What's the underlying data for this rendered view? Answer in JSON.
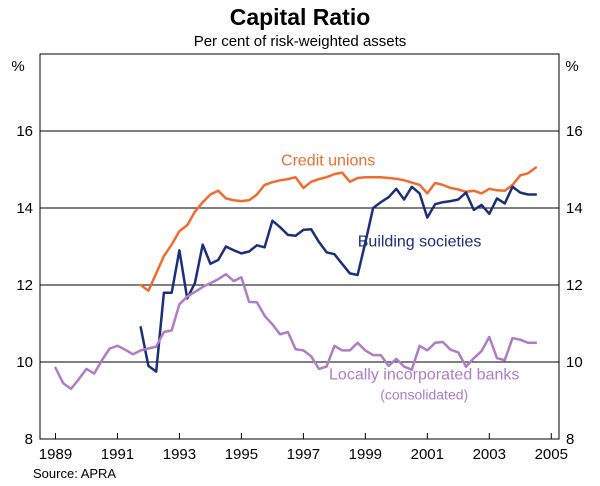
{
  "chart_data": {
    "type": "line",
    "title": "Capital Ratio",
    "subtitle": "Per cent of risk-weighted assets",
    "ylabel_left": "%",
    "ylabel_right": "%",
    "ylim": [
      8,
      18
    ],
    "xlim": [
      1988.5,
      2005.25
    ],
    "yticks": [
      8,
      10,
      12,
      14,
      16
    ],
    "xticks": [
      1989,
      1991,
      1993,
      1995,
      1997,
      1999,
      2001,
      2003,
      2005
    ],
    "gridlines": [
      10,
      12,
      14,
      16
    ],
    "source": "Source: APRA",
    "series": [
      {
        "name": "Credit unions",
        "label": "Credit unions",
        "color": "#f26b2e",
        "label_anchor": [
          1997.8,
          15.1
        ],
        "x": [
          1991.75,
          1992.0,
          1992.25,
          1992.5,
          1992.75,
          1993.0,
          1993.25,
          1993.5,
          1993.75,
          1994.0,
          1994.25,
          1994.5,
          1994.75,
          1995.0,
          1995.25,
          1995.5,
          1995.75,
          1996.0,
          1996.25,
          1996.5,
          1996.75,
          1997.0,
          1997.25,
          1997.5,
          1997.75,
          1998.0,
          1998.25,
          1998.5,
          1998.75,
          1999.0,
          1999.25,
          1999.5,
          1999.75,
          2000.0,
          2000.25,
          2000.5,
          2000.75,
          2001.0,
          2001.25,
          2001.5,
          2001.75,
          2002.0,
          2002.25,
          2002.5,
          2002.75,
          2003.0,
          2003.25,
          2003.5,
          2003.75,
          2004.0,
          2004.25,
          2004.5
        ],
        "values": [
          12.0,
          11.85,
          12.3,
          12.75,
          13.05,
          13.4,
          13.55,
          13.9,
          14.15,
          14.35,
          14.45,
          14.25,
          14.2,
          14.18,
          14.2,
          14.35,
          14.6,
          14.67,
          14.72,
          14.75,
          14.8,
          14.52,
          14.68,
          14.75,
          14.8,
          14.88,
          14.92,
          14.68,
          14.78,
          14.8,
          14.8,
          14.8,
          14.78,
          14.76,
          14.72,
          14.66,
          14.6,
          14.38,
          14.65,
          14.6,
          14.52,
          14.48,
          14.42,
          14.45,
          14.38,
          14.5,
          14.46,
          14.45,
          14.6,
          14.85,
          14.9,
          15.05
        ]
      },
      {
        "name": "Building societies",
        "label": "Building societies",
        "color": "#1b2f7a",
        "label_anchor": [
          2000.75,
          13.0
        ],
        "x": [
          1991.75,
          1992.0,
          1992.25,
          1992.5,
          1992.75,
          1993.0,
          1993.25,
          1993.5,
          1993.75,
          1994.0,
          1994.25,
          1994.5,
          1994.75,
          1995.0,
          1995.25,
          1995.5,
          1995.75,
          1996.0,
          1996.25,
          1996.5,
          1996.75,
          1997.0,
          1997.25,
          1997.5,
          1997.75,
          1998.0,
          1998.25,
          1998.5,
          1998.75,
          1999.0,
          1999.25,
          1999.5,
          1999.75,
          2000.0,
          2000.25,
          2000.5,
          2000.75,
          2001.0,
          2001.25,
          2001.5,
          2001.75,
          2002.0,
          2002.25,
          2002.5,
          2002.75,
          2003.0,
          2003.25,
          2003.5,
          2003.75,
          2004.0,
          2004.25,
          2004.5
        ],
        "values": [
          10.9,
          9.9,
          9.75,
          11.8,
          11.8,
          12.9,
          11.65,
          12.05,
          13.05,
          12.55,
          12.65,
          13.0,
          12.9,
          12.82,
          12.87,
          13.03,
          12.98,
          13.67,
          13.5,
          13.3,
          13.28,
          13.43,
          13.45,
          13.12,
          12.85,
          12.8,
          12.55,
          12.3,
          12.26,
          13.1,
          14.0,
          14.15,
          14.28,
          14.5,
          14.22,
          14.55,
          14.38,
          13.75,
          14.1,
          14.15,
          14.18,
          14.22,
          14.4,
          13.95,
          14.08,
          13.85,
          14.25,
          14.12,
          14.55,
          14.4,
          14.35,
          14.35
        ]
      },
      {
        "name": "Locally incorporated banks",
        "label": "Locally incorporated banks",
        "sublabel": "(consolidated)",
        "color": "#b07cc6",
        "label_anchor": [
          2000.9,
          9.55
        ],
        "x": [
          1989.0,
          1989.25,
          1989.5,
          1989.75,
          1990.0,
          1990.25,
          1990.5,
          1990.75,
          1991.0,
          1991.25,
          1991.5,
          1991.75,
          1992.0,
          1992.25,
          1992.5,
          1992.75,
          1993.0,
          1993.25,
          1993.5,
          1993.75,
          1994.0,
          1994.25,
          1994.5,
          1994.75,
          1995.0,
          1995.25,
          1995.5,
          1995.75,
          1996.0,
          1996.25,
          1996.5,
          1996.75,
          1997.0,
          1997.25,
          1997.5,
          1997.75,
          1998.0,
          1998.25,
          1998.5,
          1998.75,
          1999.0,
          1999.25,
          1999.5,
          1999.75,
          2000.0,
          2000.25,
          2000.5,
          2000.75,
          2001.0,
          2001.25,
          2001.5,
          2001.75,
          2002.0,
          2002.25,
          2002.5,
          2002.75,
          2003.0,
          2003.25,
          2003.5,
          2003.75,
          2004.0,
          2004.25,
          2004.5
        ],
        "values": [
          9.85,
          9.45,
          9.3,
          9.55,
          9.82,
          9.7,
          10.05,
          10.35,
          10.42,
          10.32,
          10.2,
          10.3,
          10.35,
          10.4,
          10.78,
          10.82,
          11.5,
          11.7,
          11.82,
          11.95,
          12.05,
          12.15,
          12.28,
          12.1,
          12.2,
          11.56,
          11.55,
          11.2,
          10.98,
          10.72,
          10.78,
          10.33,
          10.3,
          10.15,
          9.82,
          9.88,
          10.42,
          10.3,
          10.3,
          10.5,
          10.3,
          10.18,
          10.18,
          9.9,
          10.08,
          9.88,
          9.8,
          10.42,
          10.3,
          10.5,
          10.52,
          10.32,
          10.25,
          9.88,
          10.1,
          10.28,
          10.65,
          10.1,
          10.05,
          10.62,
          10.58,
          10.5,
          10.5
        ]
      }
    ]
  }
}
